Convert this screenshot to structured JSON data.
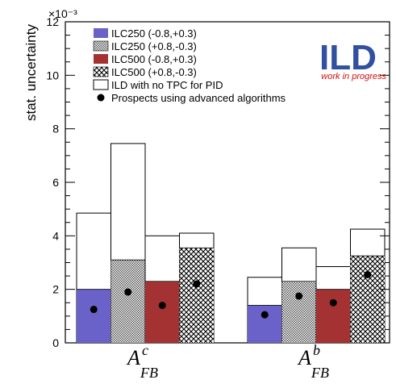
{
  "chart_data": {
    "type": "bar",
    "ylabel": "stat. uncertainty",
    "y_multiplier": "×10⁻³",
    "ylim": [
      0,
      12
    ],
    "yticks": [
      "0",
      "2",
      "4",
      "6",
      "8",
      "10",
      "12"
    ],
    "groups": [
      {
        "base": "A",
        "sup": "c",
        "sub": "FB"
      },
      {
        "base": "A",
        "sup": "b",
        "sub": "FB"
      }
    ],
    "series": [
      {
        "name": "ILC250 (-0.8,+0.3)",
        "pattern": "solid-blue",
        "values": [
          2.0,
          1.4
        ],
        "no_tpc": [
          4.85,
          2.45
        ],
        "prospects": [
          1.25,
          1.05
        ]
      },
      {
        "name": "ILC250 (+0.8,-0.3)",
        "pattern": "dots",
        "values": [
          3.1,
          2.3
        ],
        "no_tpc": [
          7.45,
          3.55
        ],
        "prospects": [
          1.9,
          1.75
        ]
      },
      {
        "name": "ILC500 (-0.8,+0.3)",
        "pattern": "solid-red",
        "values": [
          2.3,
          2.0
        ],
        "no_tpc": [
          4.0,
          2.85
        ],
        "prospects": [
          1.4,
          1.5
        ]
      },
      {
        "name": "ILC500 (+0.8,-0.3)",
        "pattern": "crosshatch",
        "values": [
          3.55,
          3.25
        ],
        "no_tpc": [
          4.1,
          4.25
        ],
        "prospects": [
          2.2,
          2.55
        ]
      }
    ],
    "extra_legend": [
      "ILD with no TPC for PID",
      "Prospects using advanced algorithms"
    ],
    "colors": {
      "blue": "#6a62c8",
      "red": "#a53232",
      "ild_blue": "#3050a0",
      "ild_red": "#cc1111"
    },
    "grid": false,
    "legend_position": "top-left"
  },
  "logo": {
    "text": "ILD",
    "subtitle": "work in progress"
  }
}
